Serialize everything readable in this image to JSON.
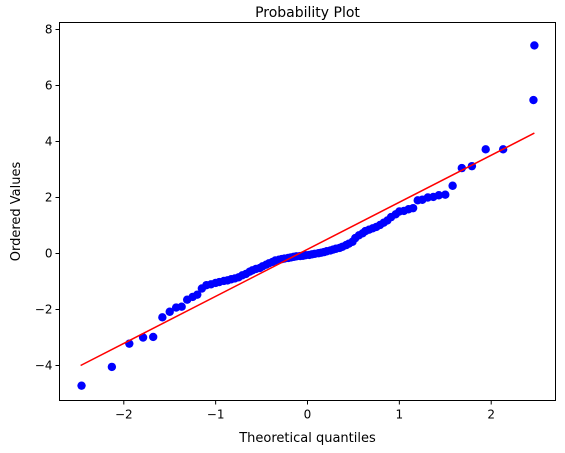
{
  "chart_data": {
    "type": "scatter",
    "title": "Probability Plot",
    "xlabel": "Theoretical quantiles",
    "ylabel": "Ordered Values",
    "xlim": [
      -2.7,
      2.7
    ],
    "ylim": [
      -5.25,
      8.25
    ],
    "xticks": [
      -2,
      -1,
      0,
      1,
      2
    ],
    "xtick_labels": [
      "−2",
      "−1",
      "0",
      "1",
      "2"
    ],
    "yticks": [
      -4,
      -2,
      0,
      2,
      4,
      6,
      8
    ],
    "ytick_labels": [
      "−4",
      "−2",
      "0",
      "2",
      "4",
      "6",
      "8"
    ],
    "grid": false,
    "series": [
      {
        "kind": "points",
        "color": "#0000ff",
        "points": [
          [
            -2.46,
            -4.72
          ],
          [
            -2.13,
            -4.05
          ],
          [
            -1.94,
            -3.22
          ],
          [
            -1.79,
            -3.0
          ],
          [
            -1.68,
            -2.98
          ],
          [
            -1.58,
            -2.28
          ],
          [
            -1.5,
            -2.08
          ],
          [
            -1.43,
            -1.93
          ],
          [
            -1.37,
            -1.9
          ],
          [
            -1.31,
            -1.65
          ],
          [
            -1.25,
            -1.55
          ],
          [
            -1.2,
            -1.47
          ],
          [
            -1.15,
            -1.25
          ],
          [
            -1.1,
            -1.13
          ],
          [
            -1.05,
            -1.1
          ],
          [
            -1.0,
            -1.05
          ],
          [
            -0.96,
            -1.02
          ],
          [
            -0.91,
            -0.98
          ],
          [
            -0.87,
            -0.96
          ],
          [
            -0.83,
            -0.92
          ],
          [
            -0.79,
            -0.89
          ],
          [
            -0.75,
            -0.85
          ],
          [
            -0.71,
            -0.78
          ],
          [
            -0.67,
            -0.73
          ],
          [
            -0.63,
            -0.65
          ],
          [
            -0.6,
            -0.6
          ],
          [
            -0.56,
            -0.55
          ],
          [
            -0.52,
            -0.52
          ],
          [
            -0.49,
            -0.46
          ],
          [
            -0.45,
            -0.4
          ],
          [
            -0.42,
            -0.35
          ],
          [
            -0.38,
            -0.3
          ],
          [
            -0.35,
            -0.25
          ],
          [
            -0.31,
            -0.22
          ],
          [
            -0.28,
            -0.2
          ],
          [
            -0.25,
            -0.18
          ],
          [
            -0.21,
            -0.16
          ],
          [
            -0.18,
            -0.14
          ],
          [
            -0.15,
            -0.12
          ],
          [
            -0.12,
            -0.1
          ],
          [
            -0.08,
            -0.09
          ],
          [
            -0.05,
            -0.08
          ],
          [
            -0.02,
            -0.06
          ],
          [
            0.02,
            -0.05
          ],
          [
            0.05,
            -0.03
          ],
          [
            0.08,
            -0.01
          ],
          [
            0.12,
            0.01
          ],
          [
            0.15,
            0.03
          ],
          [
            0.18,
            0.05
          ],
          [
            0.21,
            0.08
          ],
          [
            0.25,
            0.11
          ],
          [
            0.28,
            0.14
          ],
          [
            0.31,
            0.17
          ],
          [
            0.35,
            0.2
          ],
          [
            0.38,
            0.24
          ],
          [
            0.42,
            0.3
          ],
          [
            0.45,
            0.35
          ],
          [
            0.49,
            0.42
          ],
          [
            0.52,
            0.55
          ],
          [
            0.56,
            0.65
          ],
          [
            0.6,
            0.72
          ],
          [
            0.63,
            0.8
          ],
          [
            0.67,
            0.85
          ],
          [
            0.71,
            0.9
          ],
          [
            0.75,
            0.95
          ],
          [
            0.79,
            1.02
          ],
          [
            0.83,
            1.1
          ],
          [
            0.87,
            1.18
          ],
          [
            0.91,
            1.3
          ],
          [
            0.96,
            1.4
          ],
          [
            1.0,
            1.5
          ],
          [
            1.05,
            1.52
          ],
          [
            1.1,
            1.58
          ],
          [
            1.15,
            1.62
          ],
          [
            1.2,
            1.9
          ],
          [
            1.25,
            1.92
          ],
          [
            1.31,
            2.0
          ],
          [
            1.37,
            2.02
          ],
          [
            1.43,
            2.08
          ],
          [
            1.5,
            2.1
          ],
          [
            1.58,
            2.42
          ],
          [
            1.68,
            3.05
          ],
          [
            1.79,
            3.12
          ],
          [
            1.94,
            3.72
          ],
          [
            2.13,
            3.72
          ],
          [
            2.46,
            5.48
          ],
          [
            2.47,
            7.43
          ]
        ]
      },
      {
        "kind": "fit-line",
        "color": "#ff0000",
        "x": [
          -2.47,
          2.47
        ],
        "y": [
          -4.0,
          4.3
        ]
      }
    ]
  }
}
